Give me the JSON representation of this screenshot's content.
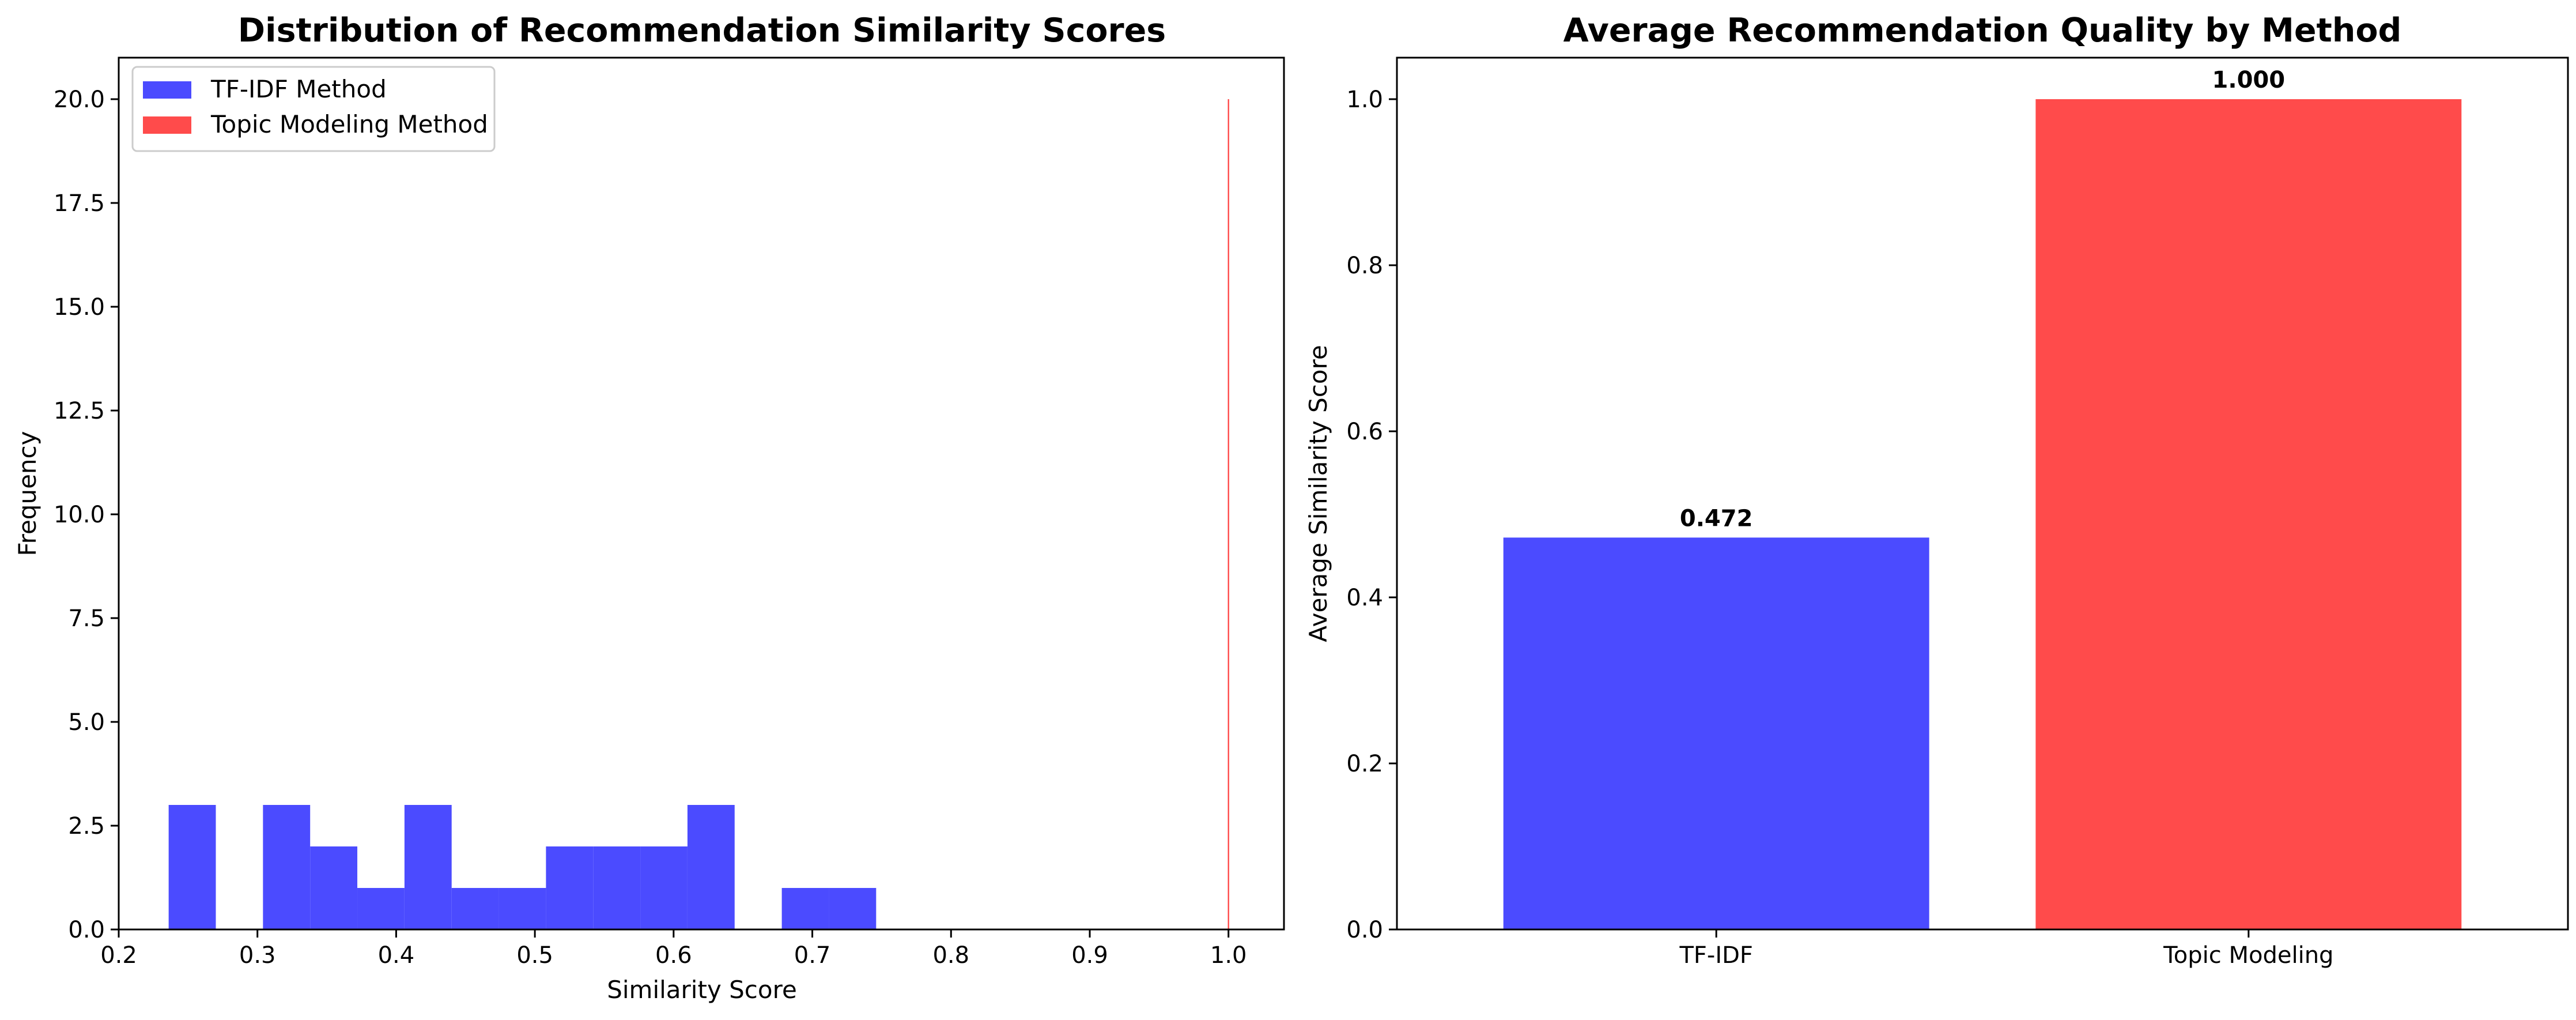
{
  "chart_data": [
    {
      "type": "histogram",
      "title": "Distribution of Recommendation Similarity Scores",
      "xlabel": "Similarity Score",
      "ylabel": "Frequency",
      "xlim": [
        0.2,
        1.04
      ],
      "ylim": [
        0,
        21
      ],
      "xticks": [
        "0.2",
        "0.3",
        "0.4",
        "0.5",
        "0.6",
        "0.7",
        "0.8",
        "0.9",
        "1.0"
      ],
      "yticks": [
        "0.0",
        "2.5",
        "5.0",
        "7.5",
        "10.0",
        "12.5",
        "15.0",
        "17.5",
        "20.0"
      ],
      "legend_position": "top-left",
      "grid": false,
      "series": [
        {
          "name": "TF-IDF Method",
          "color": "#4b4bff",
          "bins": [
            {
              "x0": 0.236,
              "x1": 0.27,
              "count": 3
            },
            {
              "x0": 0.27,
              "x1": 0.304,
              "count": 0
            },
            {
              "x0": 0.304,
              "x1": 0.338,
              "count": 3
            },
            {
              "x0": 0.338,
              "x1": 0.372,
              "count": 2
            },
            {
              "x0": 0.372,
              "x1": 0.406,
              "count": 1
            },
            {
              "x0": 0.406,
              "x1": 0.44,
              "count": 3
            },
            {
              "x0": 0.44,
              "x1": 0.474,
              "count": 1
            },
            {
              "x0": 0.474,
              "x1": 0.508,
              "count": 1
            },
            {
              "x0": 0.508,
              "x1": 0.542,
              "count": 2
            },
            {
              "x0": 0.542,
              "x1": 0.576,
              "count": 2
            },
            {
              "x0": 0.576,
              "x1": 0.61,
              "count": 2
            },
            {
              "x0": 0.61,
              "x1": 0.644,
              "count": 3
            },
            {
              "x0": 0.644,
              "x1": 0.678,
              "count": 0
            },
            {
              "x0": 0.678,
              "x1": 0.712,
              "count": 1
            },
            {
              "x0": 0.712,
              "x1": 0.746,
              "count": 1
            }
          ]
        },
        {
          "name": "Topic Modeling Method",
          "color": "#ff4b4b",
          "bins": [
            {
              "x0": 0.9995,
              "x1": 1.0005,
              "count": 20
            }
          ]
        }
      ]
    },
    {
      "type": "bar",
      "title": "Average Recommendation Quality by Method",
      "xlabel": "",
      "ylabel": "Average Similarity Score",
      "ylim": [
        0,
        1.05
      ],
      "yticks": [
        "0.0",
        "0.2",
        "0.4",
        "0.6",
        "0.8",
        "1.0"
      ],
      "grid": false,
      "categories": [
        "TF-IDF",
        "Topic Modeling"
      ],
      "values": [
        0.472,
        1.0
      ],
      "data_labels": [
        "0.472",
        "1.000"
      ],
      "colors": [
        "#4b4bff",
        "#ff4b4b"
      ]
    }
  ]
}
